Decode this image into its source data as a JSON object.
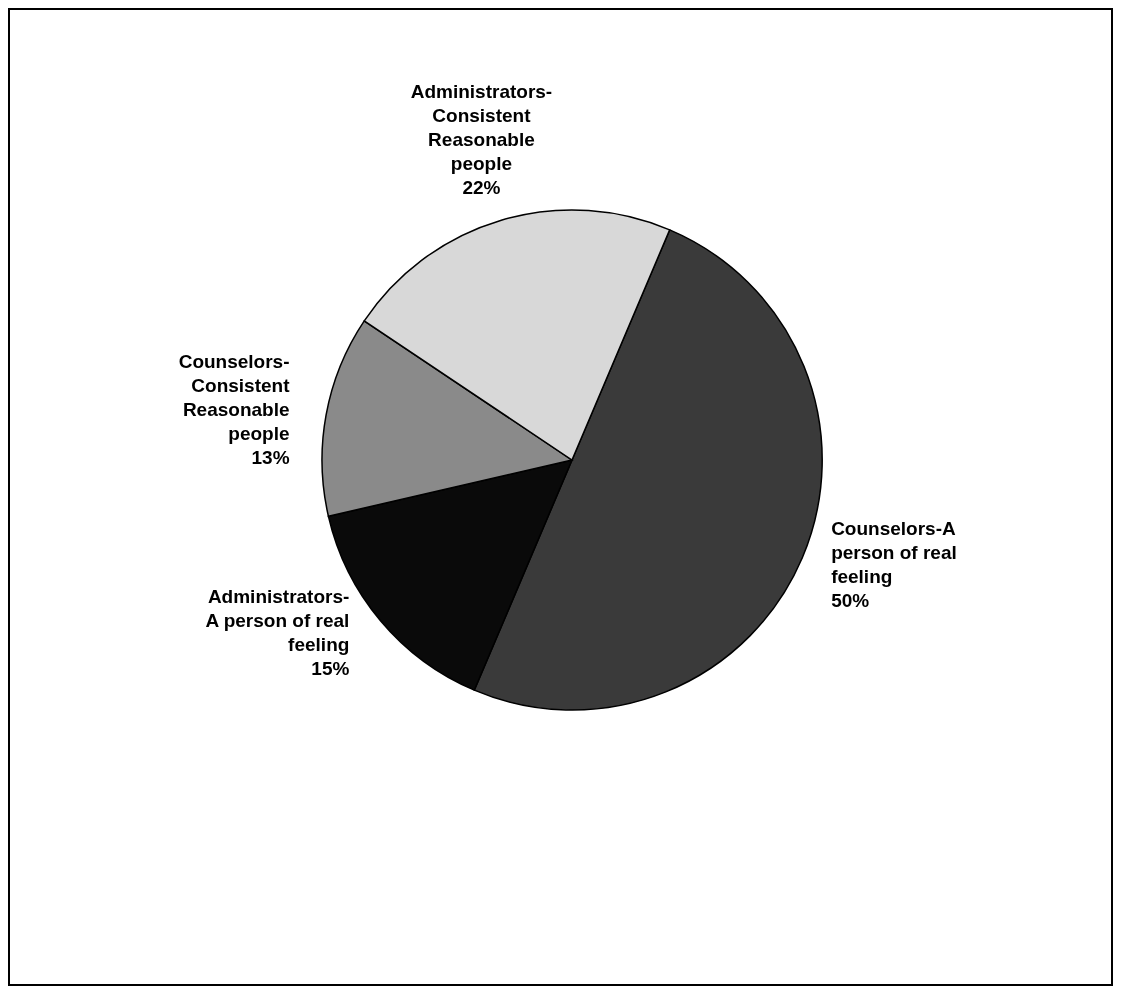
{
  "chart_data": {
    "type": "pie",
    "categories": [
      "Counselors-A\nperson of real\nfeeling",
      "Administrators-\nA person of real\nfeeling",
      "Counselors-\nConsistent\nReasonable\npeople",
      "Administrators-\nConsistent\nReasonable\npeople"
    ],
    "values": [
      50,
      15,
      13,
      22
    ],
    "colors": [
      "#3a3a3a",
      "#0a0a0a",
      "#8a8a8a",
      "#d8d8d8"
    ],
    "value_labels": [
      "50%",
      "15%",
      "13%",
      "22%"
    ]
  }
}
